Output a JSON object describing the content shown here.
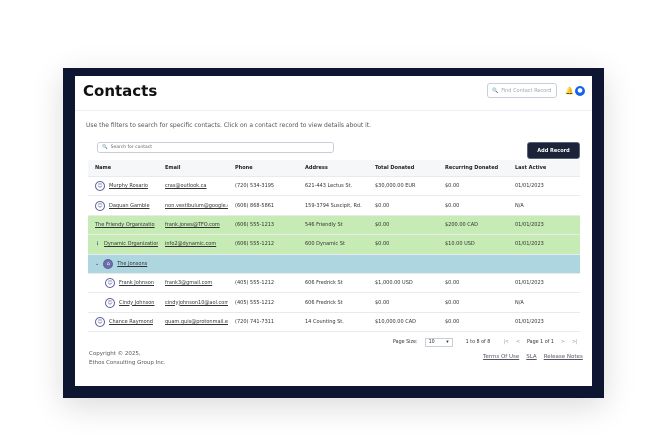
{
  "header": {
    "title": "Contacts",
    "find_placeholder": "Find Contact Record"
  },
  "description": "Use the filters to search for specific contacts. Click on a contact record to view details about it.",
  "search": {
    "placeholder": "Search for contact"
  },
  "add_button": "Add Record",
  "table": {
    "columns": [
      "Name",
      "Email",
      "Phone",
      "Address",
      "Total Donated",
      "Recurring Donated",
      "Last Active"
    ],
    "rows": [
      {
        "name": "Murphy Rosario",
        "email": "cras@outlook.ca",
        "phone": "(720) 534-3195",
        "address": "621-443 Lectus St.",
        "total": "$30,000.00 EUR",
        "recurring": "$0.00",
        "last": "01/01/2023"
      },
      {
        "name": "Daquan Gamble",
        "email": "non.vestibulum@google.co",
        "phone": "(606) 868-5861",
        "address": "159-3794 Suscipit, Rd.",
        "total": "$0.00",
        "recurring": "$0.00",
        "last": "N/A"
      },
      {
        "name": "The Friendy Organizatio",
        "email": "frank.jones@TFO.com",
        "phone": "(606) 555-1213",
        "address": "546 Friendly St",
        "total": "$0.00",
        "recurring": "$200.00 CAD",
        "last": "01/01/2023"
      },
      {
        "name": "Dynamic Organization",
        "email": "info2@dynamic.com",
        "phone": "(606) 555-1212",
        "address": "600 Dynamic St",
        "total": "$0.00",
        "recurring": "$10.00 USD",
        "last": "01/01/2023"
      },
      {
        "name": "The Jonsons"
      },
      {
        "name": "Frank Johnson",
        "email": "frank3@gmail.com",
        "phone": "(405) 555-1212",
        "address": "606 Fredrick St",
        "total": "$1,000.00 USD",
        "recurring": "$0.00",
        "last": "01/01/2023"
      },
      {
        "name": "Cindy Johnson",
        "email": "cindyjohnson10@aol.com",
        "phone": "(405) 555-1212",
        "address": "606 Fredrick St",
        "total": "$0.00",
        "recurring": "$0.00",
        "last": "N/A"
      },
      {
        "name": "Chance Raymond",
        "email": "quam.quis@protonmail.edu",
        "phone": "(720) 741-7311",
        "address": "14 Counting St.",
        "total": "$10,000.00 CAD",
        "recurring": "$0.00",
        "last": "01/01/2023"
      }
    ]
  },
  "pager": {
    "label": "Page Size:",
    "size": "10",
    "range": "1 to 8 of 8",
    "page": "Page 1 of 1"
  },
  "footer": {
    "copyright1": "Copyright © 2025,",
    "copyright2": "Ethos Consulting Group Inc.",
    "links": [
      "Terms Of Use",
      "SLA",
      "Release Notes"
    ]
  },
  "colors": {
    "frame": "#0d1530",
    "org_row": "#c6ebb4",
    "household_row": "#aed6e0",
    "button": "#1b2438",
    "avatar": "#1463e6"
  }
}
